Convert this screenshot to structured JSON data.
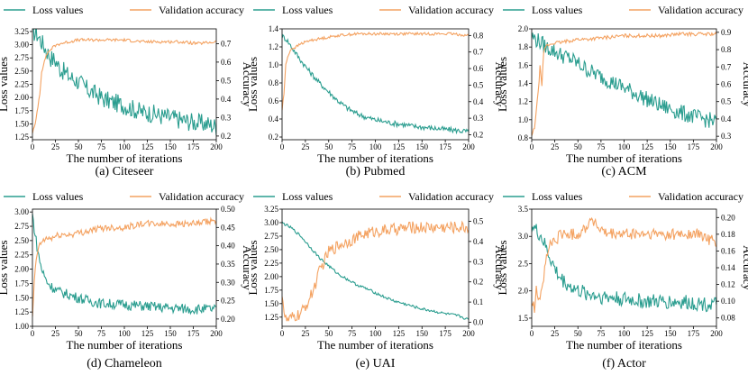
{
  "colors": {
    "loss": "#2a9d8f",
    "accuracy": "#f4a261"
  },
  "chart_data": [
    {
      "type": "line",
      "caption": "(a) Citeseer",
      "xlabel": "The number of iterations",
      "ylabel": "Loss values",
      "y2label": "Accuracy",
      "xlim": [
        0,
        200
      ],
      "xticks": [
        0,
        25,
        50,
        75,
        100,
        125,
        150,
        175,
        200
      ],
      "ylim": [
        1.2,
        3.3
      ],
      "yticks": [
        1.25,
        1.5,
        1.75,
        2.0,
        2.25,
        2.5,
        2.75,
        3.0,
        3.25
      ],
      "y2lim": [
        0.18,
        0.78
      ],
      "y2ticks": [
        0.2,
        0.3,
        0.4,
        0.5,
        0.6,
        0.7
      ],
      "legend": [
        "Loss values",
        "Validation accuracy"
      ],
      "series": [
        {
          "name": "Loss values",
          "axis": "left",
          "x": [
            0,
            5,
            10,
            15,
            20,
            25,
            30,
            40,
            50,
            60,
            70,
            80,
            90,
            100,
            110,
            120,
            130,
            140,
            150,
            160,
            170,
            180,
            190,
            200
          ],
          "values": [
            3.25,
            3.2,
            3.05,
            2.9,
            2.75,
            2.7,
            2.55,
            2.4,
            2.3,
            2.15,
            2.05,
            1.95,
            1.9,
            1.85,
            1.78,
            1.72,
            1.7,
            1.65,
            1.62,
            1.58,
            1.55,
            1.52,
            1.5,
            1.45
          ],
          "noise": 0.18
        },
        {
          "name": "Validation accuracy",
          "axis": "right",
          "x": [
            0,
            3,
            5,
            8,
            10,
            13,
            15,
            20,
            25,
            30,
            40,
            50,
            60,
            70,
            80,
            100,
            120,
            140,
            160,
            180,
            200
          ],
          "values": [
            0.22,
            0.26,
            0.33,
            0.43,
            0.55,
            0.6,
            0.64,
            0.67,
            0.69,
            0.7,
            0.71,
            0.72,
            0.72,
            0.72,
            0.72,
            0.72,
            0.71,
            0.71,
            0.71,
            0.7,
            0.71
          ],
          "noise": 0.008
        }
      ]
    },
    {
      "type": "line",
      "caption": "(b) Pubmed",
      "xlabel": "The number of iterations",
      "ylabel": "Loss values",
      "y2label": "Accuracy",
      "xlim": [
        0,
        200
      ],
      "xticks": [
        0,
        25,
        50,
        75,
        100,
        125,
        150,
        175,
        200
      ],
      "ylim": [
        0.17,
        1.4
      ],
      "yticks": [
        0.2,
        0.4,
        0.6,
        0.8,
        1.0,
        1.2,
        1.4
      ],
      "y2lim": [
        0.17,
        0.84
      ],
      "y2ticks": [
        0.2,
        0.3,
        0.4,
        0.5,
        0.6,
        0.7,
        0.8
      ],
      "legend": [
        "Loss values",
        "Validation accuracy"
      ],
      "series": [
        {
          "name": "Loss values",
          "axis": "left",
          "x": [
            0,
            5,
            10,
            20,
            30,
            40,
            50,
            60,
            70,
            80,
            90,
            100,
            110,
            120,
            130,
            140,
            150,
            160,
            170,
            180,
            190,
            200
          ],
          "values": [
            1.32,
            1.28,
            1.2,
            1.05,
            0.92,
            0.8,
            0.7,
            0.6,
            0.52,
            0.46,
            0.42,
            0.39,
            0.37,
            0.35,
            0.34,
            0.32,
            0.31,
            0.3,
            0.29,
            0.28,
            0.27,
            0.26
          ],
          "noise": 0.03
        },
        {
          "name": "Validation accuracy",
          "axis": "right",
          "x": [
            0,
            2,
            4,
            6,
            8,
            10,
            15,
            20,
            30,
            40,
            60,
            80,
            100,
            120,
            140,
            160,
            180,
            200
          ],
          "values": [
            0.35,
            0.45,
            0.62,
            0.67,
            0.7,
            0.72,
            0.73,
            0.75,
            0.77,
            0.78,
            0.8,
            0.81,
            0.81,
            0.81,
            0.81,
            0.81,
            0.81,
            0.8
          ],
          "noise": 0.008
        }
      ]
    },
    {
      "type": "line",
      "caption": "(c) ACM",
      "xlabel": "The number of iterations",
      "ylabel": "Loss values",
      "y2label": "Accuracy",
      "xlim": [
        0,
        200
      ],
      "xticks": [
        0,
        25,
        50,
        75,
        100,
        125,
        150,
        175,
        200
      ],
      "ylim": [
        0.78,
        2.0
      ],
      "yticks": [
        0.8,
        1.0,
        1.2,
        1.4,
        1.6,
        1.8,
        2.0
      ],
      "y2lim": [
        0.28,
        0.92
      ],
      "y2ticks": [
        0.3,
        0.4,
        0.5,
        0.6,
        0.7,
        0.8,
        0.9
      ],
      "legend": [
        "Loss values",
        "Validation accuracy"
      ],
      "series": [
        {
          "name": "Loss values",
          "axis": "left",
          "x": [
            0,
            5,
            10,
            15,
            20,
            25,
            30,
            40,
            50,
            60,
            70,
            80,
            90,
            100,
            110,
            120,
            130,
            140,
            150,
            160,
            170,
            180,
            190,
            200
          ],
          "values": [
            1.92,
            1.88,
            1.85,
            1.8,
            1.78,
            1.75,
            1.72,
            1.68,
            1.62,
            1.55,
            1.5,
            1.45,
            1.4,
            1.35,
            1.3,
            1.25,
            1.2,
            1.15,
            1.12,
            1.08,
            1.05,
            1.02,
            1.0,
            0.98
          ],
          "noise": 0.09
        },
        {
          "name": "Validation accuracy",
          "axis": "right",
          "x": [
            0,
            3,
            5,
            7,
            9,
            11,
            13,
            15,
            20,
            25,
            30,
            40,
            50,
            60,
            80,
            100,
            120,
            140,
            160,
            180,
            200
          ],
          "values": [
            0.3,
            0.35,
            0.45,
            0.55,
            0.7,
            0.6,
            0.78,
            0.82,
            0.83,
            0.84,
            0.84,
            0.85,
            0.86,
            0.86,
            0.87,
            0.88,
            0.88,
            0.88,
            0.89,
            0.89,
            0.89
          ],
          "noise": 0.01
        }
      ]
    },
    {
      "type": "line",
      "caption": "(d) Chameleon",
      "xlabel": "The number of iterations",
      "ylabel": "Loss values",
      "y2label": "Accuracy",
      "xlim": [
        0,
        200
      ],
      "xticks": [
        0,
        25,
        50,
        75,
        100,
        125,
        150,
        175,
        200
      ],
      "ylim": [
        1.0,
        3.05
      ],
      "yticks": [
        1.0,
        1.25,
        1.5,
        1.75,
        2.0,
        2.25,
        2.5,
        2.75,
        3.0
      ],
      "y2lim": [
        0.18,
        0.5
      ],
      "y2ticks": [
        0.2,
        0.25,
        0.3,
        0.35,
        0.4,
        0.45,
        0.5
      ],
      "legend": [
        "Loss values",
        "Validation accuracy"
      ],
      "series": [
        {
          "name": "Loss values",
          "axis": "left",
          "x": [
            0,
            3,
            6,
            10,
            15,
            20,
            25,
            30,
            40,
            50,
            60,
            75,
            100,
            125,
            150,
            175,
            200
          ],
          "values": [
            2.95,
            2.6,
            2.3,
            2.0,
            1.8,
            1.7,
            1.65,
            1.6,
            1.55,
            1.5,
            1.45,
            1.4,
            1.38,
            1.35,
            1.32,
            1.3,
            1.3
          ],
          "noise": 0.09
        },
        {
          "name": "Validation accuracy",
          "axis": "right",
          "x": [
            0,
            2,
            4,
            6,
            8,
            10,
            15,
            20,
            30,
            40,
            60,
            80,
            100,
            120,
            140,
            160,
            180,
            200
          ],
          "values": [
            0.2,
            0.3,
            0.36,
            0.39,
            0.4,
            0.41,
            0.42,
            0.42,
            0.43,
            0.43,
            0.44,
            0.45,
            0.45,
            0.46,
            0.46,
            0.46,
            0.46,
            0.47
          ],
          "noise": 0.009
        }
      ]
    },
    {
      "type": "line",
      "caption": "(e) UAI",
      "xlabel": "The number of iterations",
      "ylabel": "Loss values",
      "y2label": "Accuracy",
      "xlim": [
        0,
        200
      ],
      "xticks": [
        0,
        25,
        50,
        75,
        100,
        125,
        150,
        175,
        200
      ],
      "ylim": [
        1.08,
        3.25
      ],
      "yticks": [
        1.25,
        1.5,
        1.75,
        2.0,
        2.25,
        2.5,
        2.75,
        3.0,
        3.25
      ],
      "y2lim": [
        -0.02,
        0.56
      ],
      "y2ticks": [
        0.0,
        0.1,
        0.2,
        0.3,
        0.4,
        0.5
      ],
      "legend": [
        "Loss values",
        "Validation accuracy"
      ],
      "series": [
        {
          "name": "Loss values",
          "axis": "left",
          "x": [
            0,
            10,
            20,
            30,
            40,
            50,
            60,
            70,
            80,
            90,
            100,
            110,
            120,
            130,
            140,
            150,
            160,
            170,
            180,
            190,
            200
          ],
          "values": [
            3.0,
            2.9,
            2.75,
            2.55,
            2.35,
            2.2,
            2.05,
            1.95,
            1.85,
            1.78,
            1.7,
            1.62,
            1.55,
            1.5,
            1.45,
            1.4,
            1.37,
            1.33,
            1.3,
            1.27,
            1.2
          ],
          "noise": 0.025
        },
        {
          "name": "Validation accuracy",
          "axis": "right",
          "x": [
            0,
            3,
            5,
            8,
            10,
            15,
            20,
            25,
            30,
            35,
            40,
            45,
            50,
            60,
            70,
            80,
            90,
            100,
            120,
            140,
            160,
            180,
            200
          ],
          "values": [
            0.15,
            0.02,
            0.01,
            0.01,
            0.02,
            0.03,
            0.04,
            0.08,
            0.12,
            0.18,
            0.25,
            0.3,
            0.35,
            0.38,
            0.4,
            0.42,
            0.44,
            0.45,
            0.46,
            0.47,
            0.47,
            0.47,
            0.47
          ],
          "noise": 0.03
        }
      ]
    },
    {
      "type": "line",
      "caption": "(f) Actor",
      "xlabel": "The number of iterations",
      "ylabel": "Loss values",
      "y2label": "Accuracy",
      "xlim": [
        0,
        200
      ],
      "xticks": [
        0,
        25,
        50,
        75,
        100,
        125,
        150,
        175,
        200
      ],
      "ylim": [
        1.35,
        3.5
      ],
      "yticks": [
        1.5,
        2.0,
        2.5,
        3.0,
        3.5
      ],
      "y2lim": [
        0.07,
        0.21
      ],
      "y2ticks": [
        0.08,
        0.1,
        0.12,
        0.14,
        0.16,
        0.18,
        0.2
      ],
      "legend": [
        "Loss values",
        "Validation accuracy"
      ],
      "series": [
        {
          "name": "Loss values",
          "axis": "left",
          "x": [
            0,
            5,
            10,
            15,
            20,
            25,
            30,
            40,
            50,
            60,
            75,
            100,
            125,
            150,
            175,
            200
          ],
          "values": [
            3.2,
            3.1,
            3.0,
            2.8,
            2.6,
            2.4,
            2.25,
            2.1,
            2.0,
            1.95,
            1.9,
            1.85,
            1.8,
            1.8,
            1.78,
            1.75
          ],
          "noise": 0.14
        },
        {
          "name": "Validation accuracy",
          "axis": "right",
          "x": [
            0,
            3,
            5,
            8,
            10,
            13,
            16,
            20,
            25,
            30,
            40,
            50,
            60,
            65,
            70,
            80,
            100,
            120,
            140,
            160,
            180,
            200
          ],
          "values": [
            0.1,
            0.09,
            0.12,
            0.1,
            0.11,
            0.13,
            0.15,
            0.17,
            0.17,
            0.18,
            0.18,
            0.18,
            0.19,
            0.2,
            0.19,
            0.18,
            0.18,
            0.18,
            0.18,
            0.18,
            0.18,
            0.17
          ],
          "noise": 0.007
        }
      ]
    }
  ]
}
